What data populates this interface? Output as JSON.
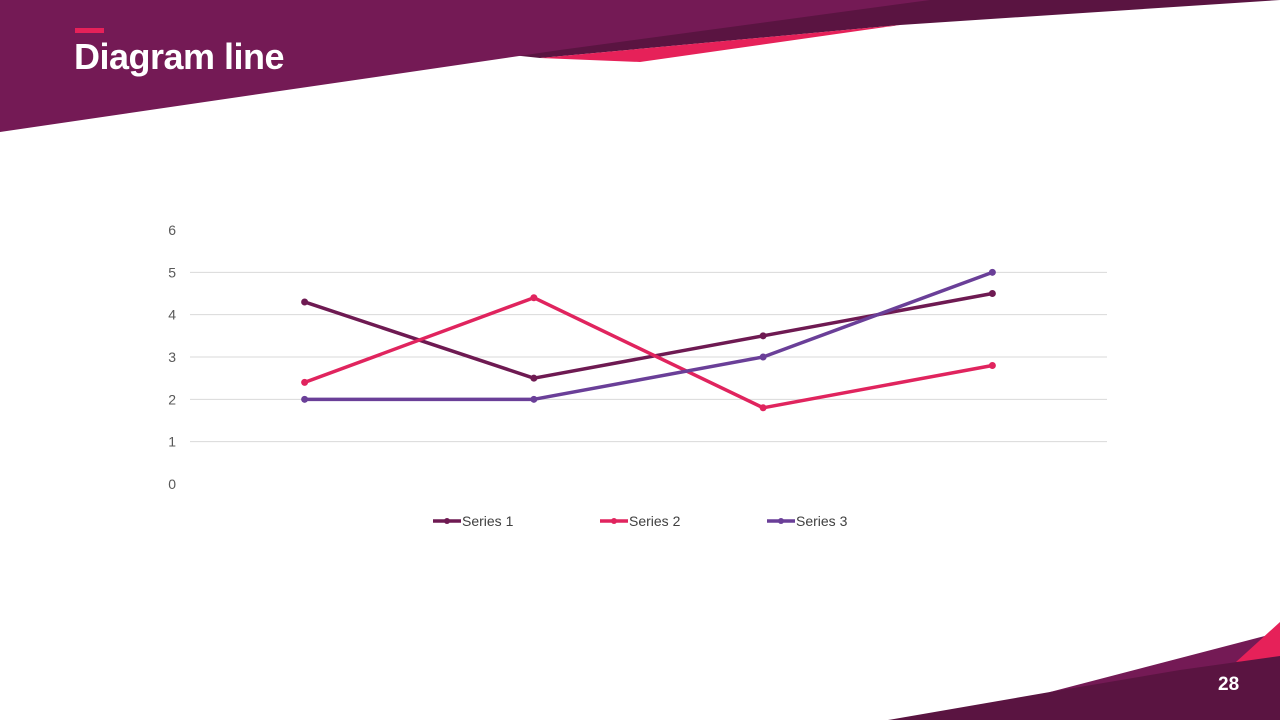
{
  "slide": {
    "title": "Diagram line",
    "page_number": "28"
  },
  "colors": {
    "primary": "#741a55",
    "dark": "#5a1441",
    "accent": "#e62159"
  },
  "chart_data": {
    "type": "line",
    "title": "",
    "xlabel": "",
    "ylabel": "",
    "categories": [
      "",
      "",
      "",
      ""
    ],
    "ylim": [
      0,
      6
    ],
    "yticks": [
      "0",
      "1",
      "2",
      "3",
      "4",
      "5",
      "6"
    ],
    "grid": true,
    "legend": "bottom",
    "series": [
      {
        "name": "Series 1",
        "color": "#6e1a52",
        "values": [
          4.3,
          2.5,
          3.5,
          4.5
        ]
      },
      {
        "name": "Series 2",
        "color": "#e0245e",
        "values": [
          2.4,
          4.4,
          1.8,
          2.8
        ]
      },
      {
        "name": "Series 3",
        "color": "#6a3f98",
        "values": [
          2,
          2,
          3,
          5
        ]
      }
    ]
  }
}
